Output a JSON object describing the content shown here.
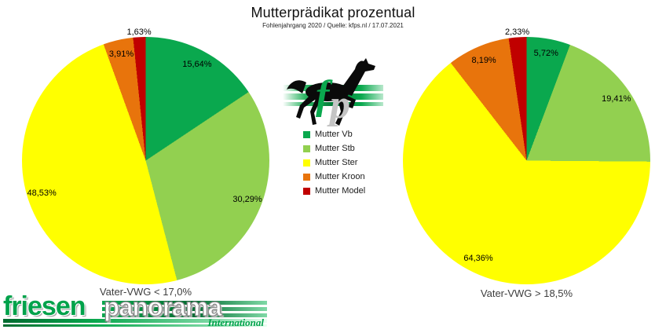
{
  "title": "Mutterprädikat prozentual",
  "subtitle": "Fohlenjahrgang 2020 / Quelle: kfps.nl / 17.07.2021",
  "legend": {
    "items": [
      {
        "label": "Mutter Vb",
        "color": "#0AA84E"
      },
      {
        "label": "Mutter Stb",
        "color": "#92D050"
      },
      {
        "label": "Mutter Ster",
        "color": "#FFFF00"
      },
      {
        "label": "Mutter Kroon",
        "color": "#E8740C"
      },
      {
        "label": "Mutter Model",
        "color": "#C00000"
      }
    ]
  },
  "chart_data": [
    {
      "type": "pie",
      "title": "Vater-VWG < 17,0%",
      "categories": [
        "Mutter Vb",
        "Mutter Stb",
        "Mutter Ster",
        "Mutter Kroon",
        "Mutter Model"
      ],
      "values": [
        15.64,
        30.29,
        48.53,
        3.91,
        1.63
      ],
      "value_labels": [
        "15,64%",
        "30,29%",
        "48,53%",
        "3,91%",
        "1,63%"
      ],
      "colors": [
        "#0AA84E",
        "#92D050",
        "#FFFF00",
        "#E8740C",
        "#C00000"
      ],
      "start_angle_deg": 0,
      "direction": "clockwise",
      "legend_position": "center-between-charts"
    },
    {
      "type": "pie",
      "title": "Vater-VWG > 18,5%",
      "categories": [
        "Mutter Vb",
        "Mutter Stb",
        "Mutter Ster",
        "Mutter Kroon",
        "Mutter Model"
      ],
      "values": [
        5.72,
        19.41,
        64.36,
        8.19,
        2.33
      ],
      "value_labels": [
        "5,72%",
        "19,41%",
        "64,36%",
        "8,19%",
        "2,33%"
      ],
      "colors": [
        "#0AA84E",
        "#92D050",
        "#FFFF00",
        "#E8740C",
        "#C00000"
      ],
      "start_angle_deg": 0,
      "direction": "clockwise",
      "legend_position": "center-between-charts"
    }
  ],
  "logos": {
    "fp_monogram": {
      "f": "f",
      "p": "p"
    },
    "friesen_text": "friesen",
    "panorama_text": "panorama",
    "international_text": "International",
    "brand_green": "#00A24B"
  }
}
